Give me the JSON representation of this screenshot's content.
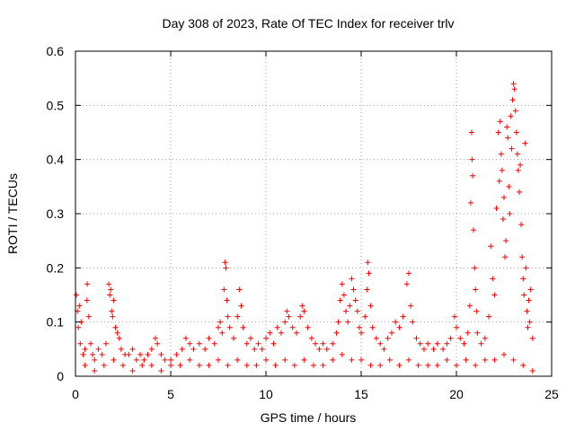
{
  "chart_data": {
    "type": "scatter",
    "title": "Day 308 of 2023, Rate Of TEC Index for receiver trlv",
    "xlabel": "GPS time / hours",
    "ylabel": "ROTI / TECUs",
    "xlim": [
      0,
      25
    ],
    "ylim": [
      0,
      0.6
    ],
    "x_ticks": [
      0,
      5,
      10,
      15,
      20,
      25
    ],
    "x_tick_labels": [
      "0",
      "5",
      "10",
      "15",
      "20",
      "25"
    ],
    "y_ticks": [
      0,
      0.1,
      0.2,
      0.3,
      0.4,
      0.5,
      0.6
    ],
    "y_tick_labels": [
      "0",
      "0.1",
      "0.2",
      "0.3",
      "0.4",
      "0.5",
      "0.6"
    ],
    "grid": true,
    "marker": "+",
    "color": "#ff0000",
    "series": [
      {
        "name": "ROTI",
        "points": [
          [
            0.05,
            0.15
          ],
          [
            0.1,
            0.12
          ],
          [
            0.15,
            0.09
          ],
          [
            0.2,
            0.13
          ],
          [
            0.25,
            0.06
          ],
          [
            0.3,
            0.1
          ],
          [
            0.4,
            0.04
          ],
          [
            0.5,
            0.05
          ],
          [
            0.6,
            0.14
          ],
          [
            0.62,
            0.17
          ],
          [
            0.7,
            0.11
          ],
          [
            0.8,
            0.06
          ],
          [
            0.9,
            0.04
          ],
          [
            1.0,
            0.03
          ],
          [
            1.2,
            0.05
          ],
          [
            1.4,
            0.04
          ],
          [
            1.6,
            0.06
          ],
          [
            1.75,
            0.17
          ],
          [
            1.8,
            0.15
          ],
          [
            1.85,
            0.16
          ],
          [
            1.9,
            0.12
          ],
          [
            1.95,
            0.11
          ],
          [
            2.0,
            0.14
          ],
          [
            2.1,
            0.09
          ],
          [
            2.2,
            0.08
          ],
          [
            2.3,
            0.07
          ],
          [
            2.4,
            0.05
          ],
          [
            2.6,
            0.04
          ],
          [
            2.8,
            0.04
          ],
          [
            3.0,
            0.05
          ],
          [
            3.2,
            0.03
          ],
          [
            3.4,
            0.04
          ],
          [
            3.6,
            0.03
          ],
          [
            3.8,
            0.04
          ],
          [
            4.0,
            0.05
          ],
          [
            4.2,
            0.07
          ],
          [
            4.3,
            0.06
          ],
          [
            4.5,
            0.04
          ],
          [
            4.7,
            0.03
          ],
          [
            5.0,
            0.03
          ],
          [
            5.3,
            0.04
          ],
          [
            5.6,
            0.05
          ],
          [
            5.8,
            0.07
          ],
          [
            6.0,
            0.06
          ],
          [
            6.2,
            0.05
          ],
          [
            6.5,
            0.06
          ],
          [
            6.8,
            0.05
          ],
          [
            7.0,
            0.07
          ],
          [
            7.3,
            0.06
          ],
          [
            7.5,
            0.09
          ],
          [
            7.6,
            0.1
          ],
          [
            7.7,
            0.08
          ],
          [
            7.8,
            0.16
          ],
          [
            7.85,
            0.21
          ],
          [
            7.9,
            0.2
          ],
          [
            7.95,
            0.14
          ],
          [
            8.0,
            0.11
          ],
          [
            8.1,
            0.09
          ],
          [
            8.3,
            0.07
          ],
          [
            8.5,
            0.11
          ],
          [
            8.6,
            0.16
          ],
          [
            8.7,
            0.13
          ],
          [
            8.8,
            0.09
          ],
          [
            9.0,
            0.06
          ],
          [
            9.2,
            0.07
          ],
          [
            9.4,
            0.05
          ],
          [
            9.6,
            0.06
          ],
          [
            9.8,
            0.05
          ],
          [
            10.0,
            0.07
          ],
          [
            10.2,
            0.08
          ],
          [
            10.4,
            0.06
          ],
          [
            10.6,
            0.09
          ],
          [
            10.8,
            0.08
          ],
          [
            11.0,
            0.1
          ],
          [
            11.1,
            0.12
          ],
          [
            11.2,
            0.11
          ],
          [
            11.4,
            0.09
          ],
          [
            11.6,
            0.08
          ],
          [
            11.8,
            0.11
          ],
          [
            11.9,
            0.13
          ],
          [
            12.0,
            0.12
          ],
          [
            12.2,
            0.09
          ],
          [
            12.4,
            0.07
          ],
          [
            12.6,
            0.06
          ],
          [
            12.8,
            0.05
          ],
          [
            13.0,
            0.06
          ],
          [
            13.2,
            0.05
          ],
          [
            13.5,
            0.06
          ],
          [
            13.7,
            0.08
          ],
          [
            13.8,
            0.1
          ],
          [
            13.9,
            0.14
          ],
          [
            14.0,
            0.17
          ],
          [
            14.1,
            0.15
          ],
          [
            14.2,
            0.12
          ],
          [
            14.3,
            0.1
          ],
          [
            14.4,
            0.13
          ],
          [
            14.5,
            0.18
          ],
          [
            14.6,
            0.16
          ],
          [
            14.7,
            0.14
          ],
          [
            14.8,
            0.12
          ],
          [
            14.9,
            0.09
          ],
          [
            15.0,
            0.08
          ],
          [
            15.2,
            0.11
          ],
          [
            15.3,
            0.16
          ],
          [
            15.35,
            0.21
          ],
          [
            15.4,
            0.19
          ],
          [
            15.5,
            0.13
          ],
          [
            15.6,
            0.09
          ],
          [
            15.8,
            0.07
          ],
          [
            16.0,
            0.06
          ],
          [
            16.2,
            0.05
          ],
          [
            16.4,
            0.07
          ],
          [
            16.6,
            0.08
          ],
          [
            16.8,
            0.1
          ],
          [
            17.0,
            0.09
          ],
          [
            17.2,
            0.11
          ],
          [
            17.4,
            0.17
          ],
          [
            17.5,
            0.19
          ],
          [
            17.6,
            0.13
          ],
          [
            17.7,
            0.1
          ],
          [
            17.9,
            0.07
          ],
          [
            18.1,
            0.06
          ],
          [
            18.3,
            0.05
          ],
          [
            18.5,
            0.06
          ],
          [
            18.8,
            0.05
          ],
          [
            19.0,
            0.06
          ],
          [
            19.3,
            0.05
          ],
          [
            19.5,
            0.06
          ],
          [
            19.7,
            0.07
          ],
          [
            19.9,
            0.11
          ],
          [
            20.0,
            0.09
          ],
          [
            20.2,
            0.07
          ],
          [
            20.4,
            0.06
          ],
          [
            20.6,
            0.08
          ],
          [
            20.7,
            0.13
          ],
          [
            20.75,
            0.32
          ],
          [
            20.8,
            0.45
          ],
          [
            20.82,
            0.4
          ],
          [
            20.85,
            0.37
          ],
          [
            20.9,
            0.27
          ],
          [
            20.95,
            0.2
          ],
          [
            21.0,
            0.16
          ],
          [
            21.05,
            0.12
          ],
          [
            21.1,
            0.08
          ],
          [
            21.3,
            0.06
          ],
          [
            21.5,
            0.07
          ],
          [
            21.7,
            0.11
          ],
          [
            21.8,
            0.24
          ],
          [
            21.9,
            0.18
          ],
          [
            22.0,
            0.15
          ],
          [
            22.1,
            0.31
          ],
          [
            22.2,
            0.45
          ],
          [
            22.25,
            0.36
          ],
          [
            22.3,
            0.47
          ],
          [
            22.35,
            0.41
          ],
          [
            22.4,
            0.38
          ],
          [
            22.45,
            0.29
          ],
          [
            22.5,
            0.33
          ],
          [
            22.55,
            0.22
          ],
          [
            22.6,
            0.25
          ],
          [
            22.65,
            0.46
          ],
          [
            22.7,
            0.44
          ],
          [
            22.75,
            0.35
          ],
          [
            22.8,
            0.3
          ],
          [
            22.85,
            0.48
          ],
          [
            22.9,
            0.42
          ],
          [
            22.95,
            0.51
          ],
          [
            23.0,
            0.54
          ],
          [
            23.05,
            0.53
          ],
          [
            23.1,
            0.49
          ],
          [
            23.15,
            0.45
          ],
          [
            23.2,
            0.41
          ],
          [
            23.25,
            0.38
          ],
          [
            23.3,
            0.34
          ],
          [
            23.35,
            0.39
          ],
          [
            23.4,
            0.28
          ],
          [
            23.45,
            0.22
          ],
          [
            23.5,
            0.18
          ],
          [
            23.55,
            0.15
          ],
          [
            23.6,
            0.43
          ],
          [
            23.65,
            0.2
          ],
          [
            23.7,
            0.12
          ],
          [
            23.75,
            0.09
          ],
          [
            23.8,
            0.14
          ],
          [
            23.85,
            0.1
          ],
          [
            23.9,
            0.16
          ],
          [
            24.0,
            0.07
          ],
          [
            0.5,
            0.02
          ],
          [
            1.0,
            0.01
          ],
          [
            1.5,
            0.02
          ],
          [
            2.0,
            0.03
          ],
          [
            2.5,
            0.02
          ],
          [
            3.0,
            0.01
          ],
          [
            3.5,
            0.02
          ],
          [
            4.0,
            0.02
          ],
          [
            4.5,
            0.01
          ],
          [
            5.0,
            0.02
          ],
          [
            5.5,
            0.02
          ],
          [
            6.0,
            0.03
          ],
          [
            6.5,
            0.02
          ],
          [
            7.0,
            0.02
          ],
          [
            7.5,
            0.03
          ],
          [
            8.0,
            0.02
          ],
          [
            8.5,
            0.03
          ],
          [
            9.0,
            0.02
          ],
          [
            9.5,
            0.02
          ],
          [
            10.0,
            0.03
          ],
          [
            10.5,
            0.02
          ],
          [
            11.0,
            0.03
          ],
          [
            11.5,
            0.02
          ],
          [
            12.0,
            0.03
          ],
          [
            12.5,
            0.02
          ],
          [
            13.0,
            0.02
          ],
          [
            13.5,
            0.03
          ],
          [
            14.0,
            0.04
          ],
          [
            14.5,
            0.03
          ],
          [
            15.0,
            0.03
          ],
          [
            15.5,
            0.02
          ],
          [
            16.0,
            0.02
          ],
          [
            16.5,
            0.03
          ],
          [
            17.0,
            0.02
          ],
          [
            17.5,
            0.03
          ],
          [
            18.0,
            0.02
          ],
          [
            18.5,
            0.02
          ],
          [
            19.0,
            0.02
          ],
          [
            19.5,
            0.03
          ],
          [
            20.0,
            0.02
          ],
          [
            20.5,
            0.03
          ],
          [
            21.0,
            0.02
          ],
          [
            21.5,
            0.03
          ],
          [
            22.0,
            0.03
          ],
          [
            22.5,
            0.04
          ],
          [
            23.0,
            0.03
          ],
          [
            23.5,
            0.02
          ],
          [
            24.0,
            0.01
          ]
        ]
      }
    ]
  }
}
